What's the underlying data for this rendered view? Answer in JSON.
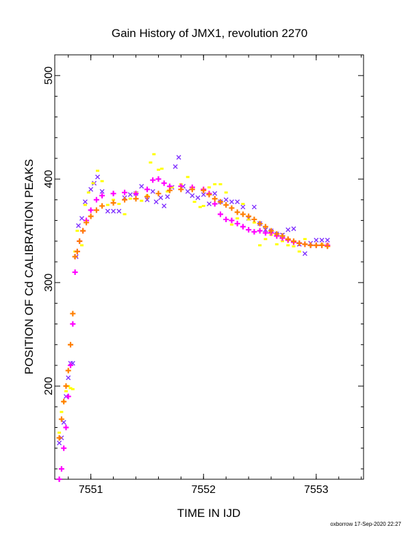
{
  "chart_data": {
    "type": "scatter",
    "title": "Gain History of JMX1, revolution 2270",
    "xlabel": "TIME IN IJD",
    "ylabel": "POSITION OF Cd CALIBRATION PEAKS",
    "xlim": [
      7550.68,
      7553.42
    ],
    "ylim": [
      110,
      520
    ],
    "x_ticks": [
      7551,
      7552,
      7553
    ],
    "x_tick_labels": [
      "7551",
      "7552",
      "7553"
    ],
    "y_ticks": [
      200,
      300,
      400,
      500
    ],
    "y_tick_labels": [
      "200",
      "300",
      "400",
      "500"
    ],
    "grid": false,
    "legend": "none",
    "footer": "oxborrow 17-Sep-2020 22:27",
    "series": [
      {
        "marker": "x",
        "color": "#7f2fff",
        "points": [
          [
            7550.72,
            145
          ],
          [
            7550.74,
            150
          ],
          [
            7550.76,
            165
          ],
          [
            7550.78,
            190
          ],
          [
            7550.8,
            208
          ],
          [
            7550.82,
            222
          ],
          [
            7550.84,
            222
          ],
          [
            7550.87,
            325
          ],
          [
            7550.89,
            355
          ],
          [
            7550.92,
            362
          ],
          [
            7550.95,
            378
          ],
          [
            7551.0,
            390
          ],
          [
            7551.03,
            396
          ],
          [
            7551.06,
            402
          ],
          [
            7551.1,
            388
          ],
          [
            7551.15,
            369
          ],
          [
            7551.2,
            369
          ],
          [
            7551.25,
            369
          ],
          [
            7551.3,
            382
          ],
          [
            7551.35,
            385
          ],
          [
            7551.4,
            386
          ],
          [
            7551.45,
            393
          ],
          [
            7551.5,
            380
          ],
          [
            7551.55,
            388
          ],
          [
            7551.58,
            378
          ],
          [
            7551.62,
            382
          ],
          [
            7551.65,
            374
          ],
          [
            7551.68,
            383
          ],
          [
            7551.72,
            392
          ],
          [
            7551.75,
            412
          ],
          [
            7551.78,
            421
          ],
          [
            7551.82,
            393
          ],
          [
            7551.86,
            388
          ],
          [
            7551.9,
            384
          ],
          [
            7551.95,
            382
          ],
          [
            7552.0,
            385
          ],
          [
            7552.05,
            376
          ],
          [
            7552.1,
            386
          ],
          [
            7552.15,
            378
          ],
          [
            7552.2,
            380
          ],
          [
            7552.25,
            378
          ],
          [
            7552.3,
            378
          ],
          [
            7552.35,
            373
          ],
          [
            7552.4,
            362
          ],
          [
            7552.45,
            373
          ],
          [
            7552.5,
            357
          ],
          [
            7552.55,
            351
          ],
          [
            7552.6,
            350
          ],
          [
            7552.65,
            347
          ],
          [
            7552.7,
            346
          ],
          [
            7552.75,
            351
          ],
          [
            7552.8,
            352
          ],
          [
            7552.85,
            337
          ],
          [
            7552.9,
            328
          ],
          [
            7552.95,
            338
          ],
          [
            7553.0,
            341
          ],
          [
            7553.05,
            341
          ],
          [
            7553.1,
            341
          ]
        ]
      },
      {
        "marker": "dot",
        "color": "#ffff00",
        "points": [
          [
            7550.72,
            155
          ],
          [
            7550.74,
            175
          ],
          [
            7550.76,
            185
          ],
          [
            7550.78,
            195
          ],
          [
            7550.8,
            200
          ],
          [
            7550.82,
            198
          ],
          [
            7550.84,
            197
          ],
          [
            7550.86,
            330
          ],
          [
            7550.88,
            350
          ],
          [
            7550.92,
            336
          ],
          [
            7550.95,
            375
          ],
          [
            7550.98,
            387
          ],
          [
            7551.02,
            396
          ],
          [
            7551.06,
            408
          ],
          [
            7551.1,
            398
          ],
          [
            7551.15,
            375
          ],
          [
            7551.2,
            380
          ],
          [
            7551.25,
            376
          ],
          [
            7551.3,
            366
          ],
          [
            7551.35,
            381
          ],
          [
            7551.4,
            387
          ],
          [
            7551.45,
            379
          ],
          [
            7551.5,
            384
          ],
          [
            7551.53,
            416
          ],
          [
            7551.56,
            424
          ],
          [
            7551.6,
            409
          ],
          [
            7551.63,
            410
          ],
          [
            7551.68,
            388
          ],
          [
            7551.72,
            392
          ],
          [
            7551.8,
            395
          ],
          [
            7551.86,
            402
          ],
          [
            7551.92,
            378
          ],
          [
            7551.97,
            373
          ],
          [
            7552.0,
            374
          ],
          [
            7552.05,
            392
          ],
          [
            7552.1,
            395
          ],
          [
            7552.15,
            395
          ],
          [
            7552.2,
            387
          ],
          [
            7552.25,
            356
          ],
          [
            7552.3,
            362
          ],
          [
            7552.35,
            376
          ],
          [
            7552.4,
            361
          ],
          [
            7552.45,
            358
          ],
          [
            7552.5,
            336
          ],
          [
            7552.55,
            342
          ],
          [
            7552.6,
            346
          ],
          [
            7552.65,
            337
          ],
          [
            7552.7,
            340
          ],
          [
            7552.75,
            336
          ],
          [
            7552.8,
            335
          ],
          [
            7552.85,
            330
          ],
          [
            7552.9,
            342
          ],
          [
            7552.95,
            336
          ],
          [
            7553.0,
            336
          ],
          [
            7553.05,
            337
          ],
          [
            7553.1,
            337
          ]
        ]
      },
      {
        "marker": "+",
        "color": "#ff00ff",
        "points": [
          [
            7550.72,
            110
          ],
          [
            7550.74,
            120
          ],
          [
            7550.76,
            140
          ],
          [
            7550.78,
            160
          ],
          [
            7550.8,
            190
          ],
          [
            7550.82,
            220
          ],
          [
            7550.84,
            260
          ],
          [
            7550.86,
            310
          ],
          [
            7550.88,
            330
          ],
          [
            7550.9,
            340
          ],
          [
            7550.93,
            350
          ],
          [
            7550.96,
            360
          ],
          [
            7551.0,
            370
          ],
          [
            7551.05,
            380
          ],
          [
            7551.1,
            384
          ],
          [
            7551.2,
            386
          ],
          [
            7551.3,
            387
          ],
          [
            7551.4,
            386
          ],
          [
            7551.5,
            390
          ],
          [
            7551.55,
            399
          ],
          [
            7551.6,
            400
          ],
          [
            7551.65,
            396
          ],
          [
            7551.7,
            393
          ],
          [
            7551.8,
            393
          ],
          [
            7551.9,
            392
          ],
          [
            7552.0,
            390
          ],
          [
            7552.05,
            386
          ],
          [
            7552.1,
            376
          ],
          [
            7552.15,
            366
          ],
          [
            7552.2,
            361
          ],
          [
            7552.25,
            360
          ],
          [
            7552.3,
            357
          ],
          [
            7552.35,
            354
          ],
          [
            7552.4,
            351
          ],
          [
            7552.45,
            349
          ],
          [
            7552.5,
            350
          ],
          [
            7552.55,
            348
          ],
          [
            7552.6,
            348
          ],
          [
            7552.65,
            345
          ],
          [
            7552.7,
            343
          ],
          [
            7552.75,
            341
          ],
          [
            7552.8,
            339
          ],
          [
            7552.85,
            338
          ],
          [
            7552.9,
            337
          ],
          [
            7552.95,
            336
          ],
          [
            7553.0,
            336
          ],
          [
            7553.05,
            336
          ],
          [
            7553.1,
            336
          ]
        ]
      },
      {
        "marker": "+",
        "color": "#ff7f00",
        "points": [
          [
            7550.72,
            150
          ],
          [
            7550.74,
            168
          ],
          [
            7550.76,
            185
          ],
          [
            7550.78,
            200
          ],
          [
            7550.8,
            215
          ],
          [
            7550.82,
            240
          ],
          [
            7550.84,
            270
          ],
          [
            7550.86,
            325
          ],
          [
            7550.88,
            330
          ],
          [
            7550.9,
            340
          ],
          [
            7550.93,
            350
          ],
          [
            7550.96,
            358
          ],
          [
            7551.0,
            364
          ],
          [
            7551.05,
            370
          ],
          [
            7551.1,
            374
          ],
          [
            7551.2,
            377
          ],
          [
            7551.3,
            380
          ],
          [
            7551.4,
            381
          ],
          [
            7551.5,
            383
          ],
          [
            7551.6,
            386
          ],
          [
            7551.7,
            389
          ],
          [
            7551.8,
            390
          ],
          [
            7551.9,
            390
          ],
          [
            7552.0,
            389
          ],
          [
            7552.05,
            385
          ],
          [
            7552.1,
            381
          ],
          [
            7552.15,
            378
          ],
          [
            7552.2,
            375
          ],
          [
            7552.25,
            372
          ],
          [
            7552.3,
            368
          ],
          [
            7552.35,
            366
          ],
          [
            7552.4,
            364
          ],
          [
            7552.45,
            361
          ],
          [
            7552.5,
            357
          ],
          [
            7552.55,
            354
          ],
          [
            7552.6,
            350
          ],
          [
            7552.65,
            347
          ],
          [
            7552.7,
            345
          ],
          [
            7552.75,
            342
          ],
          [
            7552.8,
            340
          ],
          [
            7552.85,
            338
          ],
          [
            7552.9,
            337
          ],
          [
            7552.95,
            336
          ],
          [
            7553.0,
            336
          ],
          [
            7553.05,
            336
          ],
          [
            7553.1,
            335
          ]
        ]
      }
    ]
  }
}
